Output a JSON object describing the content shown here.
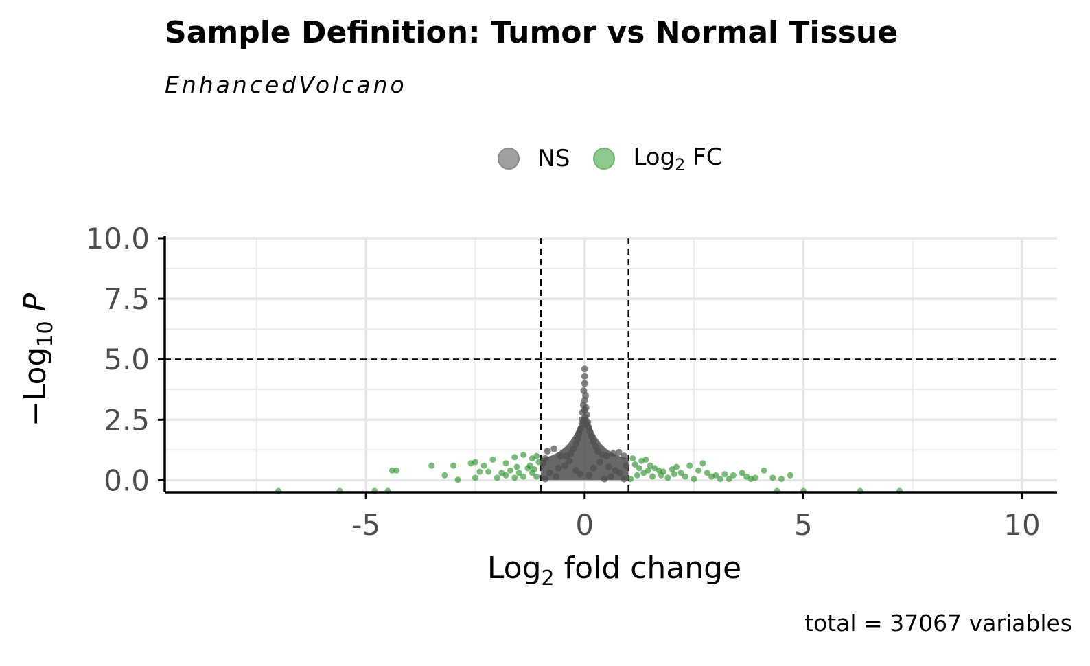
{
  "title": "Sample Definition: Tumor vs Normal Tissue",
  "subtitle": "EnhancedVolcano",
  "caption": "total = 37067 variables",
  "legend": [
    {
      "label": "NS",
      "color": "#808080"
    },
    {
      "label": "Log2 FC",
      "color": "#228B22"
    }
  ],
  "chart_data": {
    "type": "scatter",
    "title": "Sample Definition: Tumor vs Normal Tissue",
    "subtitle": "EnhancedVolcano",
    "xlabel": "Log2 fold change",
    "ylabel": "−Log10 P",
    "xlim": [
      -9.6,
      10.8
    ],
    "ylim": [
      -0.5,
      10
    ],
    "x_ticks": [
      "-5",
      "0",
      "5",
      "10"
    ],
    "x_tick_values": [
      -5,
      0,
      5,
      10
    ],
    "y_ticks": [
      "0.0",
      "2.5",
      "5.0",
      "7.5",
      "10.0"
    ],
    "y_tick_values": [
      0,
      2.5,
      5,
      7.5,
      10
    ],
    "thresholds": {
      "fc_cutoff": [
        -1,
        1
      ],
      "p_cutoff_log10": 5
    },
    "grid": true,
    "legend_position": "top",
    "series": [
      {
        "name": "NS",
        "color": "#4d4d4d",
        "points": [
          [
            0.0,
            4.6
          ],
          [
            0.0,
            4.3
          ],
          [
            0.0,
            4.0
          ],
          [
            -0.02,
            3.7
          ],
          [
            0.02,
            3.5
          ],
          [
            0.0,
            3.3
          ],
          [
            -0.03,
            3.1
          ],
          [
            0.03,
            3.0
          ],
          [
            0.0,
            2.9
          ],
          [
            -0.05,
            2.8
          ],
          [
            0.05,
            2.7
          ],
          [
            0.01,
            2.6
          ],
          [
            -0.06,
            2.5
          ],
          [
            0.07,
            2.4
          ],
          [
            -0.02,
            2.3
          ],
          [
            0.09,
            2.2
          ],
          [
            -0.1,
            2.1
          ],
          [
            0.12,
            2.0
          ],
          [
            -0.13,
            1.9
          ],
          [
            0.15,
            1.8
          ],
          [
            -0.16,
            1.7
          ],
          [
            0.2,
            1.6
          ],
          [
            -0.2,
            1.5
          ],
          [
            0.25,
            1.4
          ],
          [
            -0.26,
            1.3
          ],
          [
            0.3,
            1.2
          ],
          [
            -0.32,
            1.1
          ],
          [
            0.4,
            1.05
          ],
          [
            -0.42,
            1.0
          ],
          [
            0.5,
            1.0
          ],
          [
            -0.55,
            1.0
          ],
          [
            0.65,
            1.1
          ],
          [
            -0.7,
            1.3
          ],
          [
            -0.85,
            1.2
          ],
          [
            0.78,
            1.15
          ],
          [
            0.9,
            1.0
          ],
          [
            -0.9,
            0.9
          ],
          [
            0.95,
            0.6
          ],
          [
            -0.95,
            0.7
          ],
          [
            0.7,
            0.4
          ],
          [
            -0.6,
            0.5
          ],
          [
            0.35,
            0.75
          ],
          [
            -0.35,
            0.8
          ],
          [
            0.55,
            0.55
          ],
          [
            -0.45,
            0.6
          ],
          [
            0.8,
            0.3
          ],
          [
            -0.8,
            0.3
          ],
          [
            0.2,
            0.5
          ],
          [
            -0.2,
            0.4
          ],
          [
            0.6,
            0.15
          ],
          [
            -0.65,
            0.15
          ],
          [
            0.1,
            0.2
          ],
          [
            -0.1,
            0.25
          ],
          [
            0.9,
            0.05
          ],
          [
            -0.9,
            0.05
          ],
          [
            0.45,
            0.05
          ]
        ]
      },
      {
        "name": "Log2 FC",
        "color": "#228B22",
        "points": [
          [
            -7.0,
            -0.5
          ],
          [
            -5.6,
            -0.5
          ],
          [
            -4.8,
            -0.5
          ],
          [
            -4.5,
            -0.5
          ],
          [
            4.4,
            -0.5
          ],
          [
            6.3,
            -0.5
          ],
          [
            7.2,
            -0.5
          ],
          [
            5.0,
            -0.5
          ],
          [
            -4.4,
            0.4
          ],
          [
            -4.3,
            0.4
          ],
          [
            -3.5,
            0.6
          ],
          [
            -3.0,
            0.6
          ],
          [
            -2.6,
            0.7
          ],
          [
            -2.5,
            0.75
          ],
          [
            -3.2,
            0.2
          ],
          [
            -2.9,
            0.02
          ],
          [
            -2.5,
            0.1
          ],
          [
            -2.4,
            0.35
          ],
          [
            -2.2,
            0.35
          ],
          [
            -2.1,
            0.85
          ],
          [
            -1.8,
            0.7
          ],
          [
            -1.6,
            0.95
          ],
          [
            -1.4,
            1.05
          ],
          [
            -1.2,
            0.9
          ],
          [
            -1.1,
            1.0
          ],
          [
            -1.05,
            0.75
          ],
          [
            -2.0,
            0.1
          ],
          [
            -1.9,
            0.3
          ],
          [
            -1.7,
            0.4
          ],
          [
            -1.5,
            0.3
          ],
          [
            -1.3,
            0.5
          ],
          [
            -1.2,
            0.3
          ],
          [
            -1.1,
            0.15
          ],
          [
            -1.6,
            0.1
          ],
          [
            -1.4,
            0.15
          ],
          [
            -1.8,
            0.2
          ],
          [
            -1.25,
            0.6
          ],
          [
            -1.15,
            0.45
          ],
          [
            -2.3,
            0.6
          ],
          [
            -1.55,
            0.55
          ],
          [
            1.1,
            0.9
          ],
          [
            1.3,
            0.8
          ],
          [
            1.4,
            0.85
          ],
          [
            1.5,
            0.6
          ],
          [
            1.6,
            0.5
          ],
          [
            1.7,
            0.4
          ],
          [
            1.8,
            0.35
          ],
          [
            2.0,
            0.45
          ],
          [
            2.1,
            0.55
          ],
          [
            2.2,
            0.3
          ],
          [
            2.4,
            0.6
          ],
          [
            2.6,
            0.4
          ],
          [
            2.7,
            0.7
          ],
          [
            2.8,
            0.3
          ],
          [
            3.0,
            0.2
          ],
          [
            3.2,
            0.25
          ],
          [
            3.4,
            0.2
          ],
          [
            3.6,
            0.3
          ],
          [
            3.7,
            0.15
          ],
          [
            3.9,
            0.1
          ],
          [
            4.1,
            0.4
          ],
          [
            4.3,
            0.1
          ],
          [
            4.5,
            0.05
          ],
          [
            4.7,
            0.2
          ],
          [
            1.2,
            0.2
          ],
          [
            1.35,
            0.3
          ],
          [
            1.55,
            0.15
          ],
          [
            1.9,
            0.1
          ],
          [
            2.3,
            0.15
          ],
          [
            2.5,
            0.05
          ],
          [
            3.1,
            0.05
          ],
          [
            1.05,
            0.05
          ],
          [
            1.25,
            0.5
          ],
          [
            1.45,
            0.4
          ],
          [
            1.75,
            0.2
          ],
          [
            2.05,
            0.25
          ],
          [
            2.9,
            0.15
          ],
          [
            3.3,
            0.05
          ],
          [
            3.8,
            0.05
          ],
          [
            1.15,
            0.65
          ]
        ]
      }
    ]
  }
}
